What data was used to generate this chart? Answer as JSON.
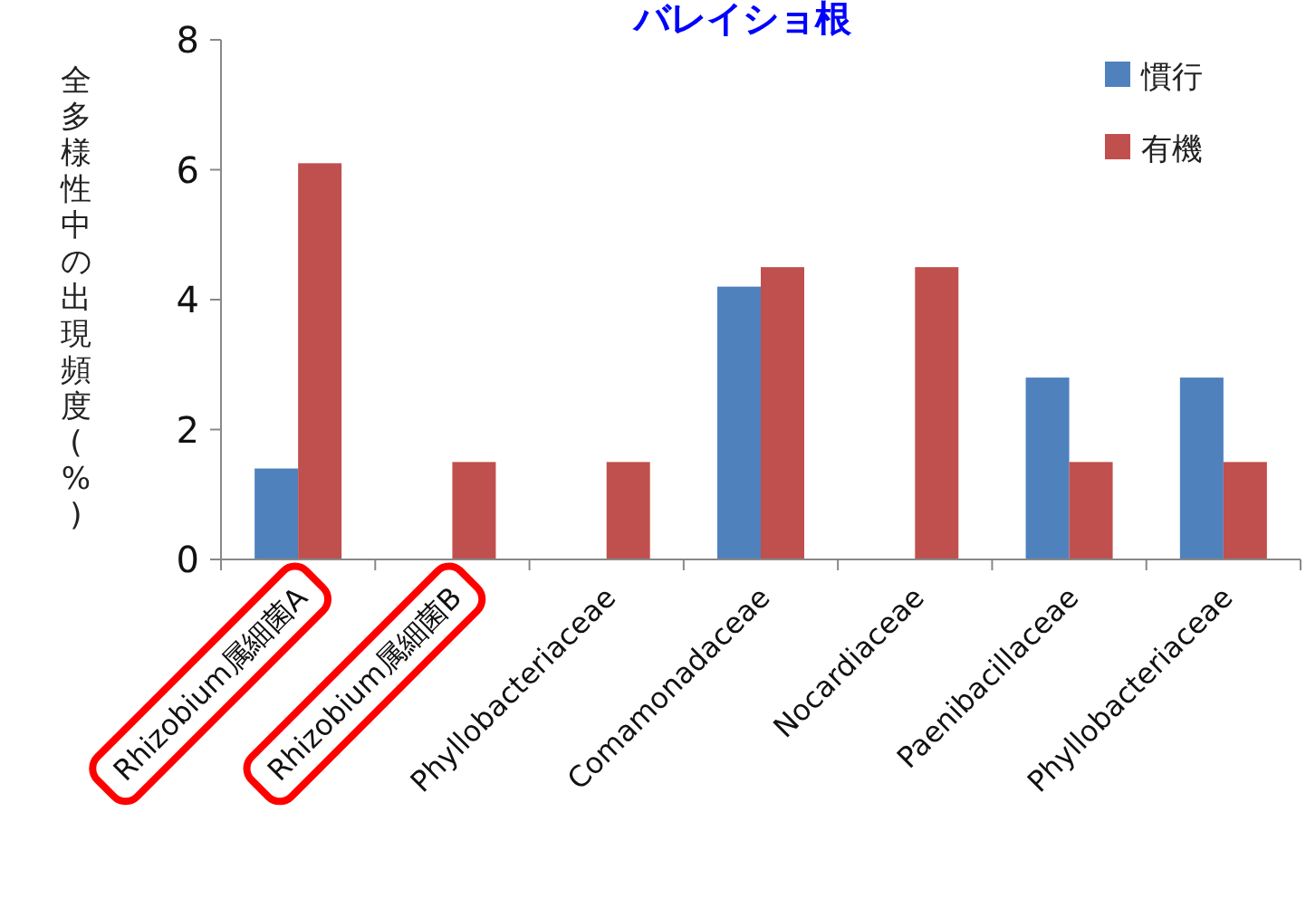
{
  "chart_data": {
    "type": "bar",
    "title": "バレイショ根",
    "ylabel": "全多様性中の出現頻度(%)",
    "categories": [
      "Rhizobium属細菌A",
      "Rhizobium属細菌B",
      "Phyllobacteriaceae",
      "Comamonadaceae",
      "Nocardiaceae",
      "Paenibacillaceae",
      "Phyllobacteriaceae"
    ],
    "series": [
      {
        "name": "慣行",
        "color": "#4f81bd",
        "values": [
          1.4,
          null,
          null,
          4.2,
          null,
          2.8,
          2.8
        ]
      },
      {
        "name": "有機",
        "color": "#c0504d",
        "values": [
          6.1,
          1.5,
          1.5,
          4.5,
          4.5,
          1.5,
          1.5
        ]
      }
    ],
    "ylim": [
      0,
      8
    ],
    "yticks": [
      0,
      2,
      4,
      6,
      8
    ],
    "grid": false,
    "legend": "top right"
  }
}
